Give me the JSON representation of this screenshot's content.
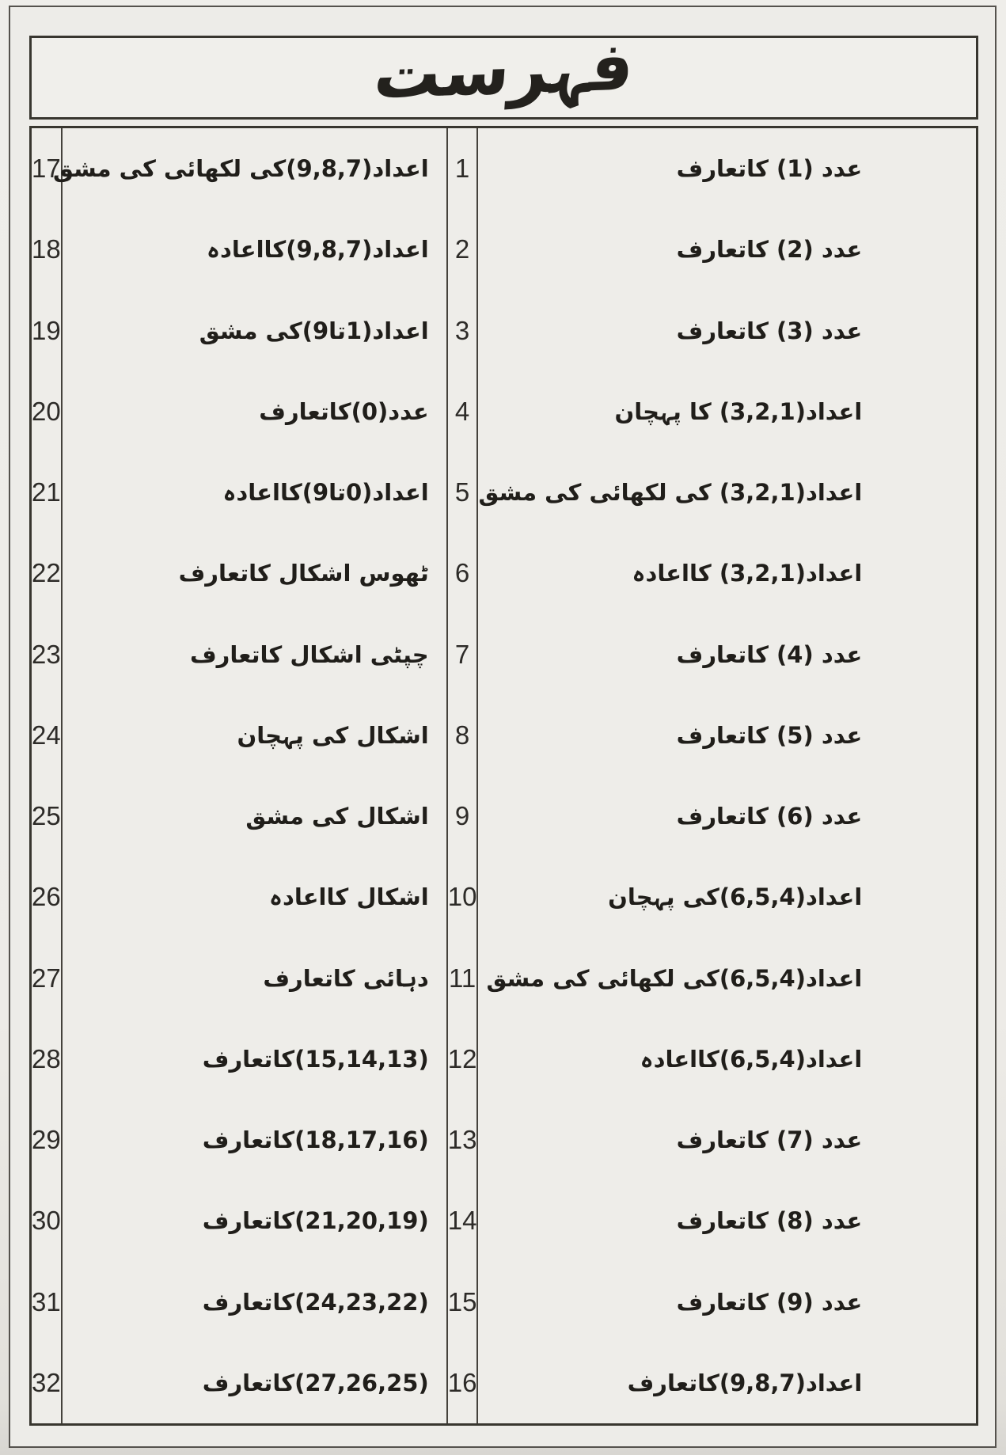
{
  "page_title": "فہرست",
  "colors": {
    "paper": "#edece8",
    "ink": "#201e1a",
    "border": "#38362f"
  },
  "toc": {
    "right_column": [
      {
        "no": "1",
        "title": "عدد (1) کاتعارف"
      },
      {
        "no": "2",
        "title": "عدد (2) کاتعارف"
      },
      {
        "no": "3",
        "title": "عدد (3) کاتعارف"
      },
      {
        "no": "4",
        "title": "اعداد(3,2,1) کا پہچان"
      },
      {
        "no": "5",
        "title": "اعداد(3,2,1) کی لکھائی کی مشق"
      },
      {
        "no": "6",
        "title": "اعداد(3,2,1) کااعادہ"
      },
      {
        "no": "7",
        "title": "عدد (4) کاتعارف"
      },
      {
        "no": "8",
        "title": "عدد (5) کاتعارف"
      },
      {
        "no": "9",
        "title": "عدد (6) کاتعارف"
      },
      {
        "no": "10",
        "title": "اعداد(6,5,4)کی پہچان"
      },
      {
        "no": "11",
        "title": "اعداد(6,5,4)کی لکھائی کی مشق"
      },
      {
        "no": "12",
        "title": "اعداد(6,5,4)کااعادہ"
      },
      {
        "no": "13",
        "title": "عدد (7) کاتعارف"
      },
      {
        "no": "14",
        "title": "عدد (8) کاتعارف"
      },
      {
        "no": "15",
        "title": "عدد (9) کاتعارف"
      },
      {
        "no": "16",
        "title": "اعداد(9,8,7)کاتعارف"
      }
    ],
    "left_column": [
      {
        "no": "17",
        "title": "اعداد(9,8,7)کی لکھائی کی مشق"
      },
      {
        "no": "18",
        "title": "اعداد(9,8,7)کااعادہ"
      },
      {
        "no": "19",
        "title": "اعداد(1تا9)کی مشق"
      },
      {
        "no": "20",
        "title": "عدد(0)کاتعارف"
      },
      {
        "no": "21",
        "title": "اعداد(0تا9)کااعادہ"
      },
      {
        "no": "22",
        "title": "ٹھوس اشکال کاتعارف"
      },
      {
        "no": "23",
        "title": "چپٹی اشکال کاتعارف"
      },
      {
        "no": "24",
        "title": "اشکال کی پہچان"
      },
      {
        "no": "25",
        "title": "اشکال کی مشق"
      },
      {
        "no": "26",
        "title": "اشکال کااعادہ"
      },
      {
        "no": "27",
        "title": "دہائی کاتعارف"
      },
      {
        "no": "28",
        "title": "(15,14,13)کاتعارف"
      },
      {
        "no": "29",
        "title": "(18,17,16)کاتعارف"
      },
      {
        "no": "30",
        "title": "(21,20,19)کاتعارف"
      },
      {
        "no": "31",
        "title": "(24,23,22)کاتعارف"
      },
      {
        "no": "32",
        "title": "(27,26,25)کاتعارف"
      }
    ]
  }
}
